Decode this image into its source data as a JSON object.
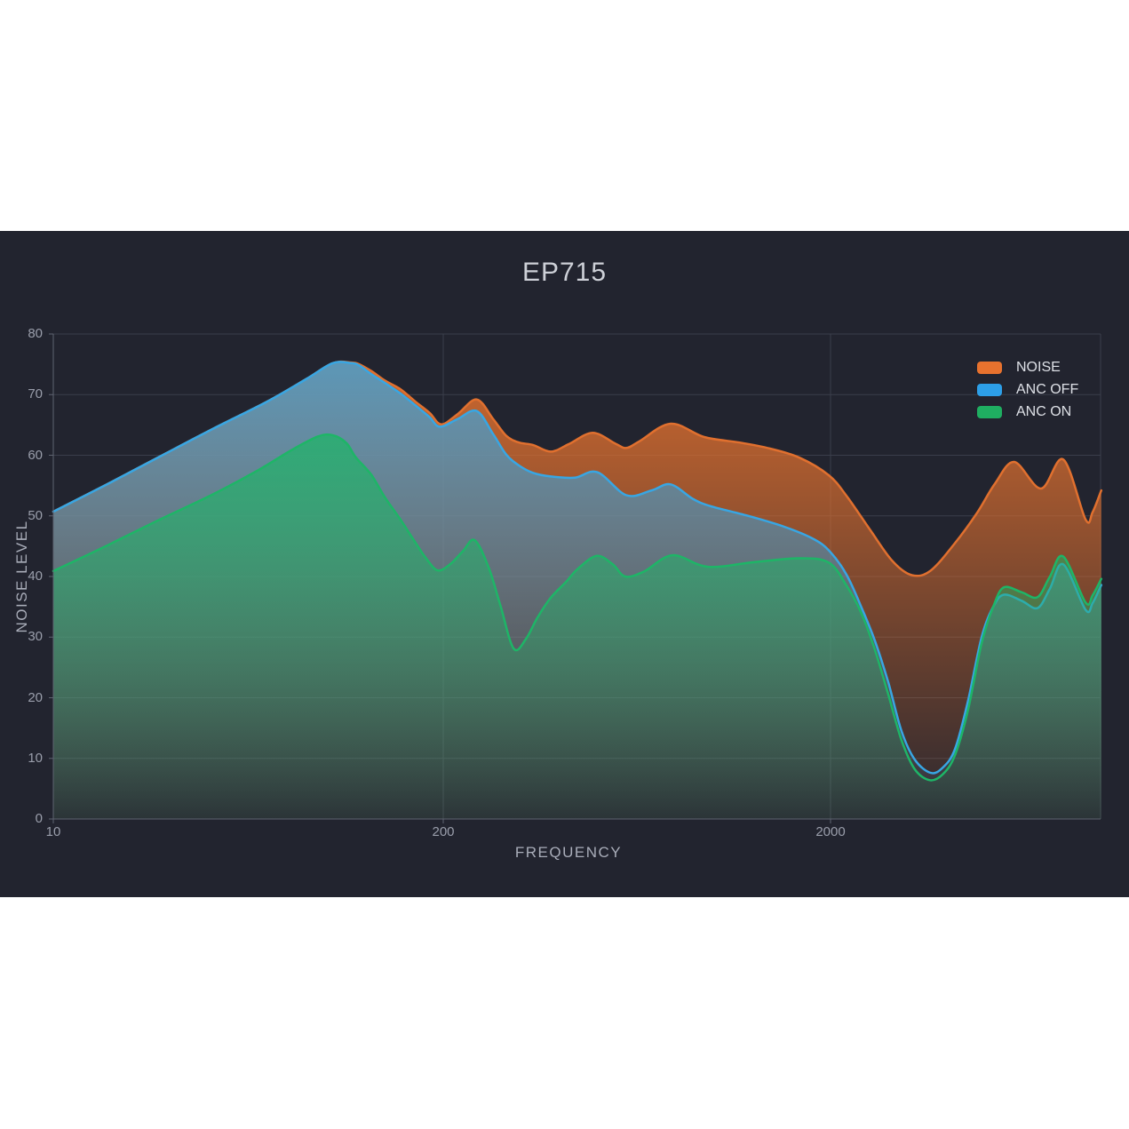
{
  "title": "EP715",
  "panel": {
    "background": "#22242f"
  },
  "axes": {
    "x": {
      "label": "FREQUENCY",
      "scale": "log",
      "ticks": [
        {
          "label": "10",
          "f": 10
        },
        {
          "label": "200",
          "f": 200
        },
        {
          "label": "2000",
          "f": 2000
        }
      ]
    },
    "y": {
      "label": "NOISE LEVEL",
      "min": 0,
      "max": 80,
      "ticks": [
        "0",
        "10",
        "20",
        "30",
        "40",
        "50",
        "60",
        "70",
        "80"
      ]
    }
  },
  "legend": {
    "items": [
      {
        "label": "NOISE",
        "color": "#e8722e"
      },
      {
        "label": "ANC OFF",
        "color": "#2d9fe8"
      },
      {
        "label": "ANC ON",
        "color": "#1fae61"
      }
    ]
  },
  "chart_data": {
    "type": "area",
    "title": "EP715",
    "xlabel": "FREQUENCY",
    "ylabel": "NOISE LEVEL",
    "x_scale": "log",
    "x_range": [
      10,
      10000
    ],
    "ylim": [
      0,
      80
    ],
    "grid": true,
    "legend_position": "top-right",
    "series": [
      {
        "name": "NOISE",
        "color": "#e0702f",
        "points": [
          [
            10,
            50.7
          ],
          [
            15.1,
            55.2
          ],
          [
            22.7,
            59.8
          ],
          [
            34.2,
            64.4
          ],
          [
            51.5,
            68.8
          ],
          [
            70,
            72.6
          ],
          [
            85.6,
            75.2
          ],
          [
            98.5,
            75.3
          ],
          [
            105,
            75.0
          ],
          [
            115,
            73.9
          ],
          [
            128,
            72.3
          ],
          [
            144,
            70.9
          ],
          [
            161,
            68.9
          ],
          [
            180,
            67.0
          ],
          [
            197,
            65.1
          ],
          [
            218,
            66.8
          ],
          [
            244,
            69.2
          ],
          [
            269,
            66.0
          ],
          [
            291,
            63.2
          ],
          [
            314,
            62.1
          ],
          [
            341,
            61.7
          ],
          [
            379,
            60.6
          ],
          [
            421,
            61.8
          ],
          [
            486,
            63.7
          ],
          [
            557,
            61.9
          ],
          [
            594,
            61.2
          ],
          [
            642,
            62.3
          ],
          [
            773,
            65.2
          ],
          [
            944,
            63.0
          ],
          [
            1166,
            62.1
          ],
          [
            1396,
            61.1
          ],
          [
            1662,
            59.6
          ],
          [
            1979,
            56.7
          ],
          [
            2200,
            53.3
          ],
          [
            2536,
            47.6
          ],
          [
            2894,
            42.5
          ],
          [
            3251,
            40.2
          ],
          [
            3630,
            41.0
          ],
          [
            4190,
            45.5
          ],
          [
            4780,
            50.5
          ],
          [
            5313,
            55.3
          ],
          [
            5964,
            58.9
          ],
          [
            6990,
            54.5
          ],
          [
            7980,
            59.3
          ],
          [
            9110,
            49.4
          ],
          [
            9500,
            50.6
          ],
          [
            10000,
            54.2
          ]
        ]
      },
      {
        "name": "ANC OFF",
        "color": "#38a6e3",
        "points": [
          [
            10,
            50.7
          ],
          [
            15.1,
            55.2
          ],
          [
            22.7,
            59.8
          ],
          [
            34.2,
            64.4
          ],
          [
            51.5,
            68.8
          ],
          [
            70,
            72.6
          ],
          [
            85.6,
            75.2
          ],
          [
            98.5,
            75.2
          ],
          [
            105,
            74.8
          ],
          [
            115,
            73.4
          ],
          [
            128,
            71.9
          ],
          [
            144,
            70.2
          ],
          [
            161,
            68.3
          ],
          [
            180,
            66.3
          ],
          [
            195,
            64.7
          ],
          [
            218,
            66.0
          ],
          [
            244,
            67.3
          ],
          [
            269,
            63.5
          ],
          [
            291,
            60.1
          ],
          [
            314,
            58.3
          ],
          [
            341,
            57.1
          ],
          [
            379,
            56.5
          ],
          [
            437,
            56.3
          ],
          [
            500,
            57.2
          ],
          [
            594,
            53.4
          ],
          [
            690,
            54.2
          ],
          [
            773,
            55.2
          ],
          [
            882,
            52.8
          ],
          [
            980,
            51.6
          ],
          [
            1210,
            50.1
          ],
          [
            1519,
            48.2
          ],
          [
            1818,
            46.1
          ],
          [
            2000,
            44.0
          ],
          [
            2200,
            40.3
          ],
          [
            2400,
            35.0
          ],
          [
            2600,
            29.5
          ],
          [
            2820,
            22.5
          ],
          [
            3050,
            14.5
          ],
          [
            3300,
            9.8
          ],
          [
            3630,
            7.6
          ],
          [
            3900,
            8.5
          ],
          [
            4190,
            11.5
          ],
          [
            4530,
            19.5
          ],
          [
            4910,
            30.0
          ],
          [
            5260,
            35.0
          ],
          [
            5600,
            37.0
          ],
          [
            6230,
            36.0
          ],
          [
            6850,
            34.8
          ],
          [
            7370,
            38.0
          ],
          [
            7980,
            42.0
          ],
          [
            9110,
            34.5
          ],
          [
            9500,
            35.6
          ],
          [
            10000,
            38.6
          ]
        ]
      },
      {
        "name": "ANC ON",
        "color": "#1eb567",
        "points": [
          [
            10,
            40.9
          ],
          [
            15.1,
            45.1
          ],
          [
            22.7,
            49.4
          ],
          [
            34.2,
            53.6
          ],
          [
            48.1,
            57.5
          ],
          [
            63.1,
            61.0
          ],
          [
            76.4,
            63.1
          ],
          [
            85.6,
            63.3
          ],
          [
            95.1,
            62.0
          ],
          [
            102,
            59.7
          ],
          [
            115,
            56.8
          ],
          [
            128,
            53.0
          ],
          [
            144,
            49.4
          ],
          [
            161,
            45.7
          ],
          [
            176,
            42.9
          ],
          [
            192,
            41.0
          ],
          [
            209,
            42.1
          ],
          [
            225,
            44.2
          ],
          [
            241,
            46.0
          ],
          [
            262,
            41.5
          ],
          [
            281,
            35.2
          ],
          [
            304,
            28.1
          ],
          [
            327,
            29.7
          ],
          [
            350,
            33.2
          ],
          [
            379,
            36.5
          ],
          [
            415,
            39.1
          ],
          [
            444,
            41.2
          ],
          [
            498,
            43.4
          ],
          [
            548,
            42.0
          ],
          [
            590,
            40.0
          ],
          [
            659,
            40.8
          ],
          [
            781,
            43.5
          ],
          [
            965,
            41.6
          ],
          [
            1280,
            42.4
          ],
          [
            1662,
            43.0
          ],
          [
            1979,
            42.3
          ],
          [
            2200,
            38.5
          ],
          [
            2400,
            34.0
          ],
          [
            2600,
            28.0
          ],
          [
            2820,
            20.5
          ],
          [
            3050,
            13.0
          ],
          [
            3300,
            8.2
          ],
          [
            3610,
            6.4
          ],
          [
            3900,
            7.4
          ],
          [
            4190,
            10.5
          ],
          [
            4530,
            18.0
          ],
          [
            4910,
            29.0
          ],
          [
            5260,
            35.0
          ],
          [
            5600,
            38.2
          ],
          [
            6230,
            37.4
          ],
          [
            6850,
            36.6
          ],
          [
            7370,
            40.0
          ],
          [
            7980,
            43.3
          ],
          [
            9110,
            35.7
          ],
          [
            9500,
            36.9
          ],
          [
            10000,
            39.6
          ]
        ]
      }
    ]
  }
}
